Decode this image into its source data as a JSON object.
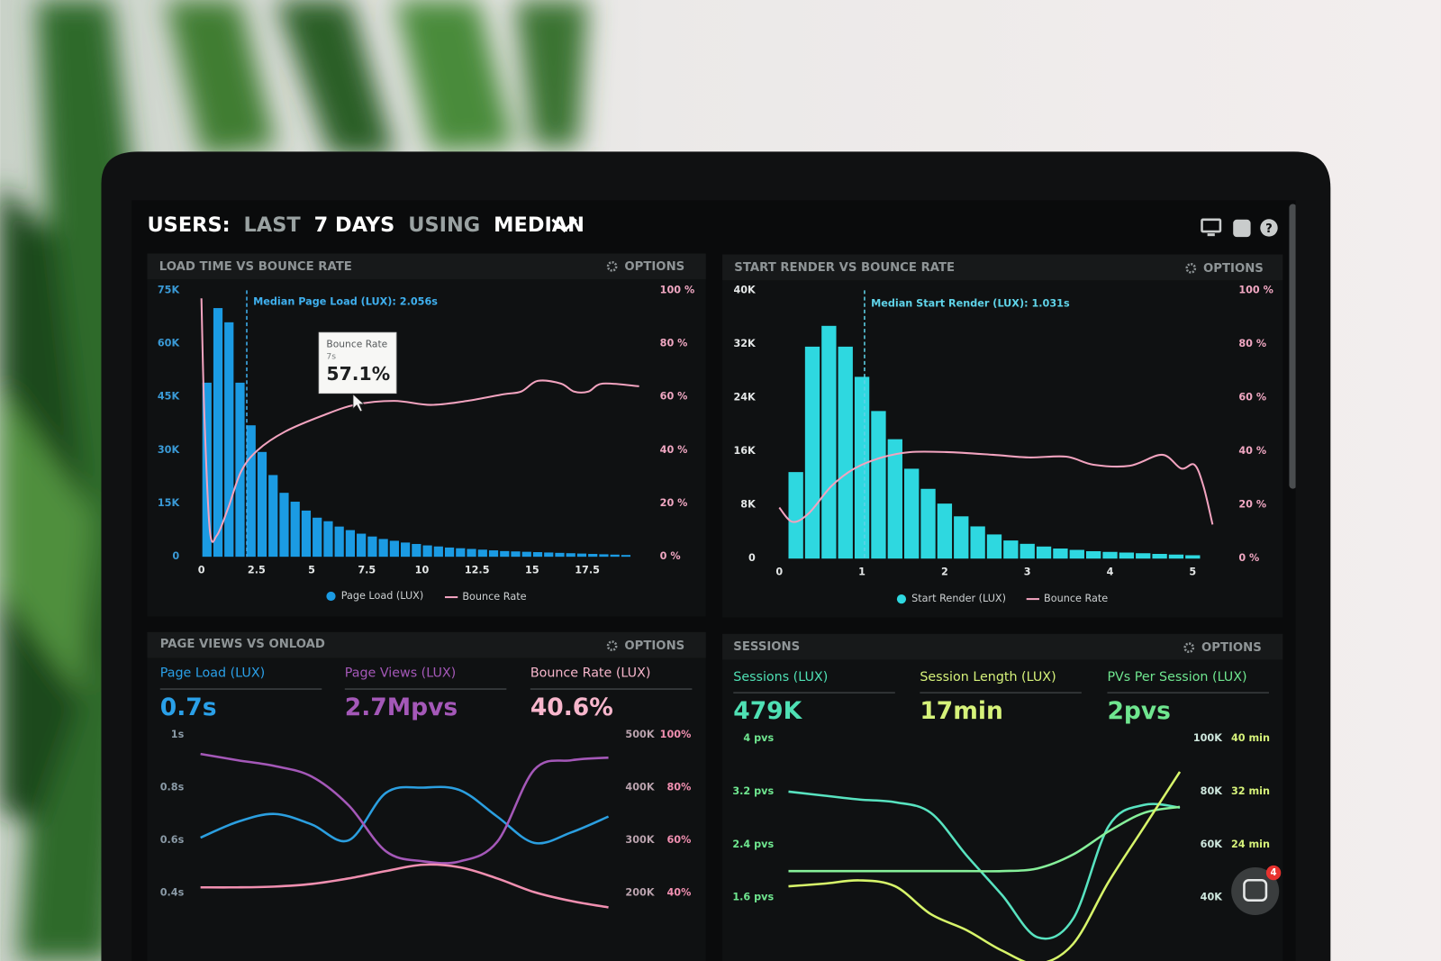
{
  "header": {
    "title_parts": [
      "USERS:",
      "LAST",
      "7 DAYS",
      "USING",
      "MEDIAN"
    ]
  },
  "widget": {
    "badge": "4"
  },
  "chart_data": [
    {
      "type": "histogram",
      "title": "LOAD TIME VS BOUNCE RATE",
      "options": "OPTIONS",
      "annotation": "Median Page Load (LUX): 2.056s",
      "median": 2.056,
      "tooltip": {
        "title": "Bounce Rate",
        "subtitle": "7s",
        "value": "57.1%"
      },
      "bins": [
        0,
        0.5,
        1,
        1.5,
        2,
        2.5,
        3,
        3.5,
        4,
        4.5,
        5,
        5.5,
        6,
        6.5,
        7,
        7.5,
        8,
        8.5,
        9,
        9.5,
        10,
        10.5,
        11,
        11.5,
        12,
        12.5,
        13,
        13.5,
        14,
        14.5,
        15,
        15.5,
        16,
        16.5,
        17,
        17.5,
        18,
        18.5,
        19,
        19.5
      ],
      "series": [
        {
          "name": "Page Load (LUX)",
          "color": "#1b9be3",
          "values": [
            49000,
            70000,
            66000,
            49000,
            37000,
            29500,
            23000,
            18000,
            15500,
            13000,
            11000,
            10000,
            8500,
            7500,
            6500,
            5700,
            5000,
            4500,
            4000,
            3600,
            3200,
            2900,
            2600,
            2400,
            2200,
            2000,
            1800,
            1600,
            1500,
            1400,
            1300,
            1200,
            1100,
            1000,
            900,
            800,
            700,
            600,
            500
          ]
        },
        {
          "name": "Bounce Rate",
          "color": "#f2a3bf",
          "axis": "y2",
          "x": [
            0,
            0.13,
            0.38,
            0.7,
            1.2,
            1.8,
            2.55,
            3.8,
            5.5,
            7,
            8.75,
            10.4,
            12.05,
            13.7,
            14.5,
            15.25,
            16.3,
            16.9,
            17.55,
            18.2,
            19.85
          ],
          "values": [
            97,
            54,
            10,
            8,
            18,
            32,
            40,
            47,
            53,
            57.1,
            58.5,
            57,
            58.5,
            61,
            62,
            66,
            65,
            62,
            62,
            65,
            64
          ]
        }
      ],
      "xlim": [
        -0.2,
        20
      ],
      "xticks": [
        0,
        2.5,
        5,
        7.5,
        10,
        12.5,
        15,
        17.5
      ],
      "ylim": [
        0,
        75000
      ],
      "yticks": [
        0,
        {
          "value": 15000,
          "label": "15K"
        },
        {
          "value": 30000,
          "label": "30K"
        },
        {
          "value": 45000,
          "label": "45K"
        },
        {
          "value": 60000,
          "label": "60K"
        },
        {
          "value": 75000,
          "label": "75K"
        }
      ],
      "y2lim": [
        0,
        100
      ],
      "y2ticks": [
        {
          "value": 0,
          "label": "0 %"
        },
        {
          "value": 20,
          "label": "20 %"
        },
        {
          "value": 40,
          "label": "40 %"
        },
        {
          "value": 60,
          "label": "60 %"
        },
        {
          "value": 80,
          "label": "80 %"
        },
        {
          "value": 100,
          "label": "100 %"
        }
      ]
    },
    {
      "type": "histogram",
      "title": "START RENDER VS BOUNCE RATE",
      "options": "OPTIONS",
      "annotation": "Median Start Render (LUX): 1.031s",
      "median": 1.031,
      "bins": [
        0.1,
        0.3,
        0.5,
        0.7,
        0.9,
        1.1,
        1.3,
        1.5,
        1.7,
        1.9,
        2.1,
        2.3,
        2.5,
        2.7,
        2.9,
        3.1,
        3.3,
        3.5,
        3.7,
        3.9,
        4.1,
        4.3,
        4.5,
        4.7,
        4.9,
        5.1
      ],
      "series": [
        {
          "name": "Start Render (LUX)",
          "color": "#2ed8e0",
          "values": [
            12900,
            31600,
            34700,
            31600,
            27100,
            22000,
            17800,
            13400,
            10400,
            8200,
            6300,
            4800,
            3600,
            2700,
            2200,
            1800,
            1500,
            1300,
            1100,
            1000,
            900,
            800,
            700,
            600,
            500
          ]
        },
        {
          "name": "Bounce Rate",
          "color": "#f2a3bf",
          "axis": "y2",
          "x": [
            0,
            0.16,
            0.36,
            0.63,
            0.91,
            1.24,
            1.58,
            2.02,
            2.58,
            3.02,
            3.47,
            3.8,
            4.24,
            4.63,
            4.86,
            5.02,
            5.13,
            5.24
          ],
          "values": [
            19,
            13.7,
            17,
            27,
            33.6,
            37.7,
            39.7,
            39.7,
            38.7,
            37.7,
            38,
            35,
            34.6,
            38.7,
            33.6,
            35,
            27,
            12.7
          ]
        }
      ],
      "xlim": [
        -0.1,
        5.4
      ],
      "xticks": [
        0,
        1,
        2,
        3,
        4,
        5
      ],
      "ylim": [
        0,
        40000
      ],
      "yticks": [
        0,
        {
          "value": 8000,
          "label": "8K"
        },
        {
          "value": 16000,
          "label": "16K"
        },
        {
          "value": 24000,
          "label": "24K"
        },
        {
          "value": 32000,
          "label": "32K"
        },
        {
          "value": 40000,
          "label": "40K"
        }
      ],
      "y2lim": [
        0,
        100
      ],
      "y2ticks": [
        {
          "value": 0,
          "label": "0 %"
        },
        {
          "value": 20,
          "label": "20 %"
        },
        {
          "value": 40,
          "label": "40 %"
        },
        {
          "value": 60,
          "label": "60 %"
        },
        {
          "value": 80,
          "label": "80 %"
        },
        {
          "value": 100,
          "label": "100 %"
        }
      ]
    },
    {
      "type": "line",
      "title": "PAGE VIEWS VS ONLOAD",
      "options": "OPTIONS",
      "kpis": [
        {
          "label": "Page Load (LUX)",
          "value": "0.7s",
          "color": "#2aa0e8"
        },
        {
          "label": "Page Views (LUX)",
          "value": "2.7Mpvs",
          "color": "#a458b8"
        },
        {
          "label": "Bounce Rate (LUX)",
          "value": "40.6%",
          "color": "#f7b6cc"
        }
      ],
      "categories": [
        null,
        null,
        null,
        null,
        null,
        null,
        null,
        null,
        null,
        null,
        null,
        null
      ],
      "series": [
        {
          "color": "#2b9fe0",
          "axis": "y",
          "values": [
            0.61,
            0.67,
            0.7,
            0.66,
            0.6,
            0.78,
            0.8,
            0.79,
            0.69,
            0.59,
            0.63,
            0.69
          ]
        },
        {
          "color": "#a458b8",
          "axis": "y2",
          "values": [
            464000,
            452000,
            441000,
            421000,
            366000,
            279000,
            260000,
            260000,
            297000,
            434000,
            452000,
            457000
          ]
        },
        {
          "color": "#f08fb0",
          "axis": "y3",
          "values": [
            42.1,
            42.1,
            42.4,
            43.4,
            45.5,
            48.3,
            50.7,
            49.7,
            45.5,
            40.3,
            36.9,
            34.5
          ]
        }
      ],
      "ylim": [
        0.3,
        1
      ],
      "yticks": [
        {
          "value": 1,
          "label": "1s"
        },
        {
          "value": 0.8,
          "label": "0.8s"
        },
        {
          "value": 0.6,
          "label": "0.6s"
        },
        {
          "value": 0.4,
          "label": "0.4s"
        }
      ],
      "y2lim": [
        150000,
        500000
      ],
      "y2ticks": [
        {
          "value": 500000,
          "label": "500K"
        },
        {
          "value": 400000,
          "label": "400K"
        },
        {
          "value": 300000,
          "label": "300K"
        },
        {
          "value": 200000,
          "label": "200K"
        }
      ],
      "y3lim": [
        30,
        100
      ],
      "y3ticks": [
        {
          "value": 100,
          "label": "100%"
        },
        {
          "value": 80,
          "label": "80%"
        },
        {
          "value": 60,
          "label": "60%"
        },
        {
          "value": 40,
          "label": "40%"
        }
      ]
    },
    {
      "type": "line",
      "title": "SESSIONS",
      "options": "OPTIONS",
      "kpis": [
        {
          "label": "Sessions (LUX)",
          "value": "479K",
          "color": "#4fe0b4"
        },
        {
          "label": "Session Length (LUX)",
          "value": "17min",
          "color": "#d6f27a"
        },
        {
          "label": "PVs Per Session (LUX)",
          "value": "2pvs",
          "color": "#6fe68f"
        }
      ],
      "categories": [
        null,
        null,
        null,
        null,
        null,
        null,
        null,
        null,
        null,
        null,
        null,
        null
      ],
      "series": [
        {
          "color": "#58e3c0",
          "axis": "y2",
          "values": [
            80000,
            78500,
            77000,
            76000,
            72000,
            56000,
            41000,
            25000,
            32000,
            67000,
            75000,
            74000
          ]
        },
        {
          "color": "#86f09a",
          "axis": "y",
          "values": [
            2,
            2,
            2,
            2,
            2,
            2,
            2,
            2.04,
            2.25,
            2.6,
            2.88,
            2.97
          ]
        },
        {
          "color": "#d7f56a",
          "axis": "y3",
          "values": [
            17.7,
            18.1,
            18.6,
            17.7,
            13.5,
            11.1,
            8,
            6,
            9,
            18.4,
            26.7,
            35
          ]
        }
      ],
      "ylim": [
        1.1,
        4
      ],
      "yticks": [
        {
          "value": 4,
          "label": "4 pvs"
        },
        {
          "value": 3.2,
          "label": "3.2 pvs"
        },
        {
          "value": 2.4,
          "label": "2.4 pvs"
        },
        {
          "value": 1.6,
          "label": "1.6 pvs"
        }
      ],
      "y2lim": [
        27500,
        100000
      ],
      "y2ticks": [
        {
          "value": 100000,
          "label": "100K"
        },
        {
          "value": 80000,
          "label": "80K"
        },
        {
          "value": 60000,
          "label": "60K"
        },
        {
          "value": 40000,
          "label": "40K"
        }
      ],
      "y3lim": [
        11,
        40
      ],
      "y3ticks": [
        {
          "value": 40,
          "label": "40 min"
        },
        {
          "value": 32,
          "label": "32 min"
        },
        {
          "value": 24,
          "label": "24 min"
        }
      ]
    }
  ]
}
